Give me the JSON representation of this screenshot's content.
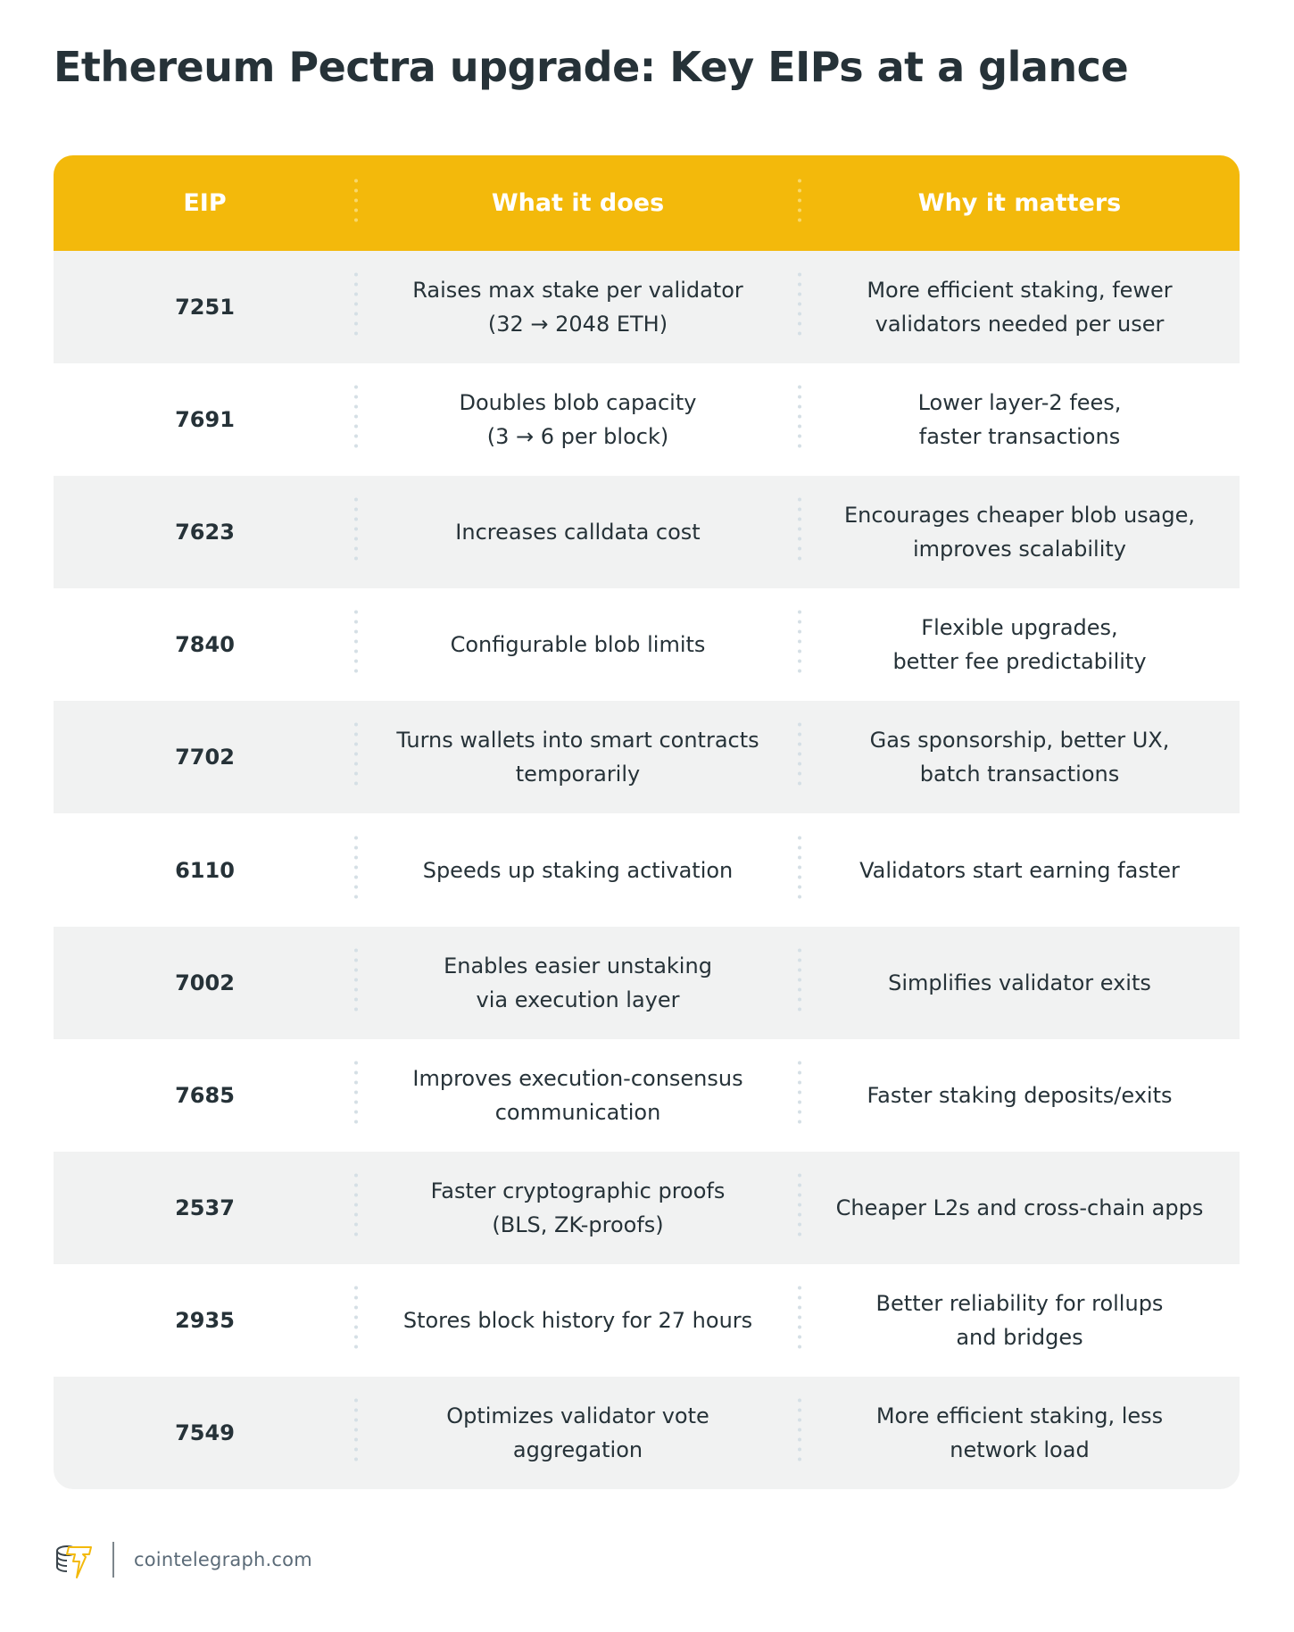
{
  "title": "Ethereum Pectra upgrade: Key EIPs at a glance",
  "colors": {
    "header_bg": "#f3b90b",
    "row_alt_bg": "#f1f2f2",
    "text": "#263238",
    "header_text": "#ffffff"
  },
  "table": {
    "headers": [
      "EIP",
      "What it does",
      "Why it matters"
    ],
    "rows": [
      {
        "eip": "7251",
        "what": "Raises max stake per validator\n(32 → 2048 ETH)",
        "why": "More efficient staking, fewer\nvalidators needed per user"
      },
      {
        "eip": "7691",
        "what": "Doubles blob capacity\n(3 → 6 per block)",
        "why": "Lower layer-2 fees,\nfaster transactions"
      },
      {
        "eip": "7623",
        "what": "Increases calldata cost",
        "why": "Encourages cheaper blob usage,\nimproves scalability"
      },
      {
        "eip": "7840",
        "what": "Configurable blob limits",
        "why": "Flexible upgrades,\nbetter fee predictability"
      },
      {
        "eip": "7702",
        "what": "Turns wallets into smart contracts\ntemporarily",
        "why": "Gas sponsorship, better UX,\nbatch transactions"
      },
      {
        "eip": "6110",
        "what": "Speeds up staking activation",
        "why": "Validators start earning faster"
      },
      {
        "eip": "7002",
        "what": "Enables easier unstaking\nvia execution layer",
        "why": "Simplifies validator exits"
      },
      {
        "eip": "7685",
        "what": "Improves execution-consensus\ncommunication",
        "why": "Faster staking deposits/exits"
      },
      {
        "eip": "2537",
        "what": "Faster cryptographic proofs\n(BLS, ZK-proofs)",
        "why": "Cheaper L2s and cross-chain apps"
      },
      {
        "eip": "2935",
        "what": "Stores block history for 27 hours",
        "why": "Better reliability for rollups\nand bridges"
      },
      {
        "eip": "7549",
        "what": "Optimizes validator vote\naggregation",
        "why": "More efficient staking, less\nnetwork load"
      }
    ]
  },
  "footer": {
    "logo_icon": "cointelegraph-logo-icon",
    "site": "cointelegraph.com"
  }
}
